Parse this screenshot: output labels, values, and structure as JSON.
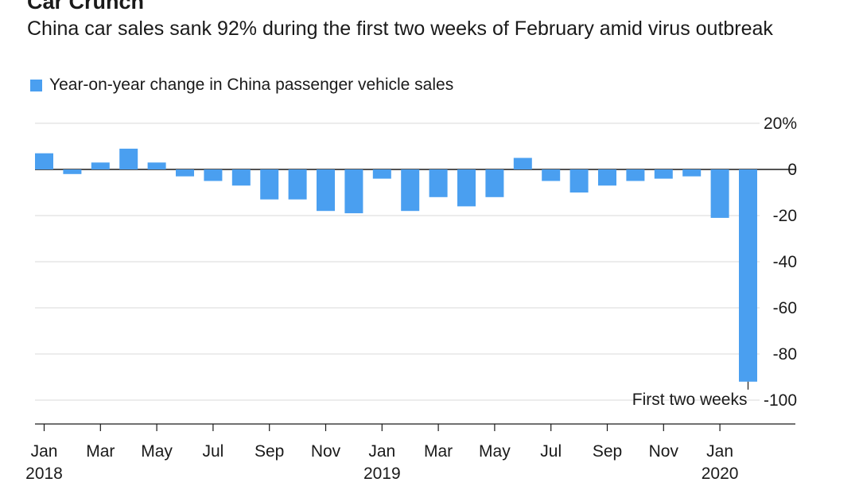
{
  "title": "Car Crunch",
  "subtitle": "China car sales sank 92% during the first two weeks of February amid virus outbreak",
  "chart_data": {
    "type": "bar",
    "title": "Car Crunch",
    "subtitle": "China car sales sank 92% during the first two weeks of February amid virus outbreak",
    "legend": [
      {
        "name": "Year-on-year change in China passenger vehicle sales",
        "color": "#4a9ff0"
      }
    ],
    "legend_position": "top-left",
    "categories": [
      "2018-01",
      "2018-02",
      "2018-03",
      "2018-04",
      "2018-05",
      "2018-06",
      "2018-07",
      "2018-08",
      "2018-09",
      "2018-10",
      "2018-11",
      "2018-12",
      "2019-01",
      "2019-02",
      "2019-03",
      "2019-04",
      "2019-05",
      "2019-06",
      "2019-07",
      "2019-08",
      "2019-09",
      "2019-10",
      "2019-11",
      "2019-12",
      "2020-01",
      "2020-02"
    ],
    "series": [
      {
        "name": "Year-on-year change in China passenger vehicle sales",
        "values": [
          7,
          -2,
          3,
          9,
          3,
          -3,
          -5,
          -7,
          -13,
          -13,
          -18,
          -19,
          -4,
          -18,
          -12,
          -16,
          -12,
          5,
          -5,
          -10,
          -7,
          -5,
          -4,
          -3,
          -21,
          -92
        ]
      }
    ],
    "x_tick_labels": [
      {
        "month": "Jan",
        "year": "2018",
        "index": 0
      },
      {
        "month": "Mar",
        "year": "",
        "index": 2
      },
      {
        "month": "May",
        "year": "",
        "index": 4
      },
      {
        "month": "Jul",
        "year": "",
        "index": 6
      },
      {
        "month": "Sep",
        "year": "",
        "index": 8
      },
      {
        "month": "Nov",
        "year": "",
        "index": 10
      },
      {
        "month": "Jan",
        "year": "2019",
        "index": 12
      },
      {
        "month": "Mar",
        "year": "",
        "index": 14
      },
      {
        "month": "May",
        "year": "",
        "index": 16
      },
      {
        "month": "Jul",
        "year": "",
        "index": 18
      },
      {
        "month": "Sep",
        "year": "",
        "index": 20
      },
      {
        "month": "Nov",
        "year": "",
        "index": 22
      },
      {
        "month": "Jan",
        "year": "2020",
        "index": 24
      }
    ],
    "y_ticks": [
      20,
      0,
      -20,
      -40,
      -60,
      -80,
      -100
    ],
    "y_tick_labels": [
      "20%",
      "0",
      "-20",
      "-40",
      "-60",
      "-80",
      "-100"
    ],
    "ylim": [
      -100,
      20
    ],
    "y_axis_side": "right",
    "grid": true,
    "annotations": [
      {
        "text": "First two weeks",
        "category": "2020-02"
      }
    ]
  }
}
